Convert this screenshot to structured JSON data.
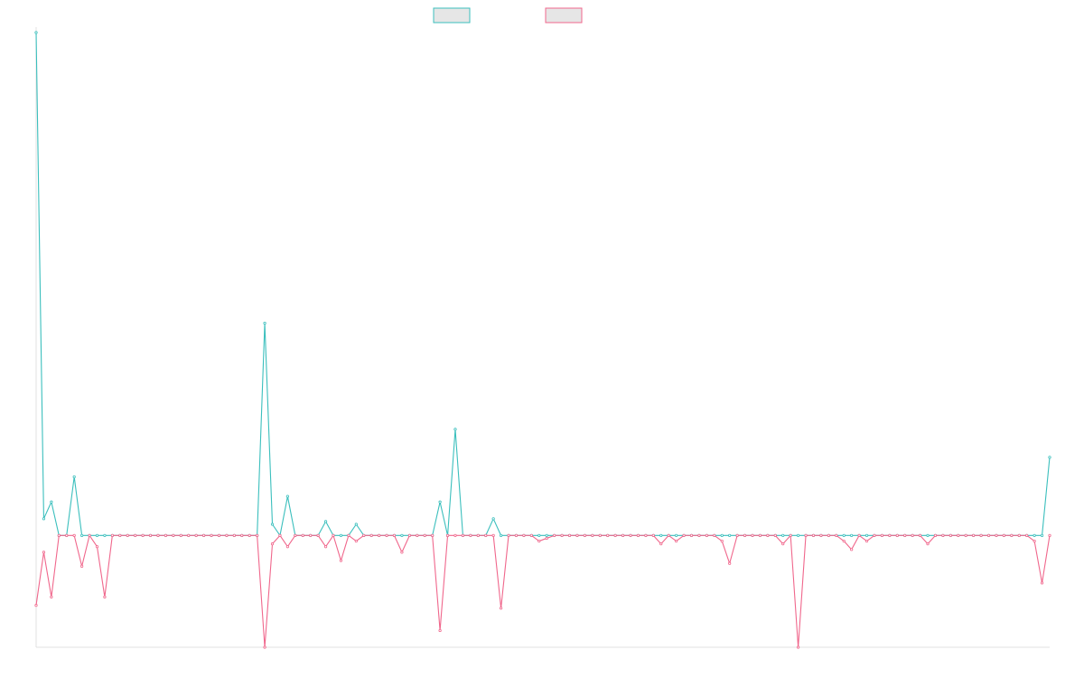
{
  "chart_data": {
    "type": "line",
    "title": "",
    "xlabel": "",
    "ylabel": "",
    "grid": false,
    "legend_position": "top-center",
    "x_ticks_shown": false,
    "y_ticks_shown": false,
    "ylim": [
      -200,
      900
    ],
    "x_count": 134,
    "series": [
      {
        "color": "#3bbfbd",
        "values": [
          900,
          30,
          60,
          0,
          0,
          105,
          0,
          0,
          0,
          0,
          0,
          0,
          0,
          0,
          0,
          0,
          0,
          0,
          0,
          0,
          0,
          0,
          0,
          0,
          0,
          0,
          0,
          0,
          0,
          0,
          380,
          20,
          0,
          70,
          0,
          0,
          0,
          0,
          25,
          0,
          0,
          0,
          20,
          0,
          0,
          0,
          0,
          0,
          0,
          0,
          0,
          0,
          0,
          60,
          0,
          190,
          0,
          0,
          0,
          0,
          30,
          0,
          0,
          0,
          0,
          0,
          0,
          0,
          0,
          0,
          0,
          0,
          0,
          0,
          0,
          0,
          0,
          0,
          0,
          0,
          0,
          0,
          0,
          0,
          0,
          0,
          0,
          0,
          0,
          0,
          0,
          0,
          0,
          0,
          0,
          0,
          0,
          0,
          0,
          0,
          0,
          0,
          0,
          0,
          0,
          0,
          0,
          0,
          0,
          0,
          0,
          0,
          0,
          0,
          0,
          0,
          0,
          0,
          0,
          0,
          0,
          0,
          0,
          0,
          0,
          0,
          0,
          0,
          0,
          0,
          0,
          0,
          0,
          140
        ]
      },
      {
        "color": "#f0678c",
        "values": [
          -125,
          -30,
          -110,
          0,
          0,
          0,
          -55,
          0,
          -20,
          -110,
          0,
          0,
          0,
          0,
          0,
          0,
          0,
          0,
          0,
          0,
          0,
          0,
          0,
          0,
          0,
          0,
          0,
          0,
          0,
          0,
          -200,
          -15,
          0,
          -20,
          0,
          0,
          0,
          0,
          -20,
          0,
          -45,
          0,
          -10,
          0,
          0,
          0,
          0,
          0,
          -30,
          0,
          0,
          0,
          0,
          -170,
          0,
          0,
          0,
          0,
          0,
          0,
          0,
          -130,
          0,
          0,
          0,
          0,
          -10,
          -5,
          0,
          0,
          0,
          0,
          0,
          0,
          0,
          0,
          0,
          0,
          0,
          0,
          0,
          0,
          -15,
          0,
          -10,
          0,
          0,
          0,
          0,
          0,
          -10,
          -50,
          0,
          0,
          0,
          0,
          0,
          0,
          -15,
          0,
          -200,
          0,
          0,
          0,
          0,
          0,
          -10,
          -25,
          0,
          -10,
          0,
          0,
          0,
          0,
          0,
          0,
          0,
          -15,
          0,
          0,
          0,
          0,
          0,
          0,
          0,
          0,
          0,
          0,
          0,
          0,
          0,
          -10,
          -85,
          0
        ]
      }
    ]
  }
}
